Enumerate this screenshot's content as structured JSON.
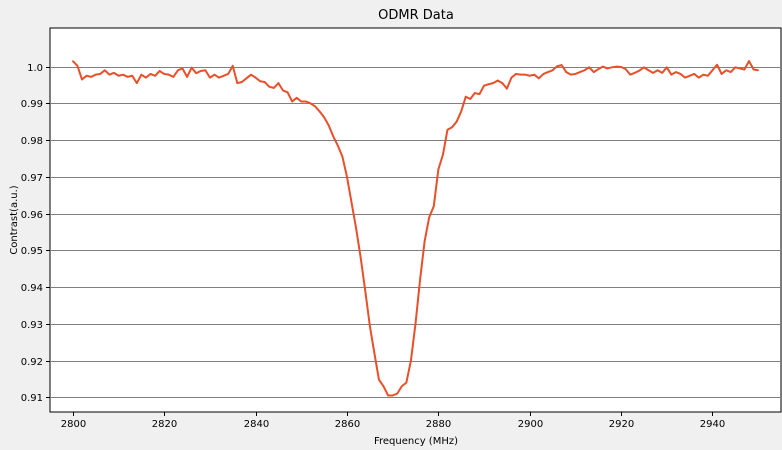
{
  "chart_data": {
    "type": "line",
    "title": "ODMR Data",
    "xlabel": "Frequency (MHz)",
    "ylabel": "Contrast(a.u.)",
    "xlim": [
      2795,
      2955
    ],
    "ylim": [
      0.906,
      1.0105
    ],
    "xticks": [
      2800,
      2820,
      2840,
      2860,
      2880,
      2900,
      2920,
      2940
    ],
    "yticks": [
      0.91,
      0.92,
      0.93,
      0.94,
      0.95,
      0.96,
      0.97,
      0.98,
      0.99,
      1.0
    ],
    "ytick_labels": [
      "0.91",
      "0.92",
      "0.93",
      "0.94",
      "0.95",
      "0.96",
      "0.97",
      "0.98",
      "0.99",
      "1.0"
    ],
    "grid": "horizontal",
    "colors": {
      "line": "#e8502a",
      "background": "#ffffff",
      "grid": "#808080",
      "frame": "#f0f0f0"
    },
    "series": [
      {
        "x": [
          2800,
          2801,
          2802,
          2803,
          2804,
          2805,
          2806,
          2807,
          2808,
          2809,
          2810,
          2811,
          2812,
          2813,
          2814,
          2815,
          2816,
          2817,
          2818,
          2819,
          2820,
          2821,
          2822,
          2823,
          2824,
          2825,
          2826,
          2827,
          2828,
          2829,
          2830,
          2831,
          2832,
          2833,
          2834,
          2835,
          2836,
          2837,
          2838,
          2839,
          2840,
          2841,
          2842,
          2843,
          2844,
          2845,
          2846,
          2847,
          2848,
          2849,
          2850,
          2851,
          2852,
          2853,
          2854,
          2855,
          2856,
          2857,
          2858,
          2859,
          2860,
          2861,
          2862,
          2863,
          2864,
          2865,
          2866,
          2867,
          2868,
          2869,
          2870,
          2871,
          2872,
          2873,
          2874,
          2875,
          2876,
          2877,
          2878,
          2879,
          2880,
          2881,
          2882,
          2883,
          2884,
          2885,
          2886,
          2887,
          2888,
          2889,
          2890,
          2891,
          2892,
          2893,
          2894,
          2895,
          2896,
          2897,
          2898,
          2899,
          2900,
          2901,
          2902,
          2903,
          2904,
          2905,
          2906,
          2907,
          2908,
          2909,
          2910,
          2911,
          2912,
          2913,
          2914,
          2915,
          2916,
          2917,
          2918,
          2919,
          2920,
          2921,
          2922,
          2923,
          2924,
          2925,
          2926,
          2927,
          2928,
          2929,
          2930,
          2931,
          2932,
          2933,
          2934,
          2935,
          2936,
          2937,
          2938,
          2939,
          2940,
          2941,
          2942,
          2943,
          2944,
          2945,
          2946,
          2947,
          2948,
          2949,
          2950
        ],
        "y": [
          1.0015,
          1.0002,
          0.9965,
          0.9975,
          0.9972,
          0.9978,
          0.998,
          0.999,
          0.9978,
          0.9983,
          0.9975,
          0.9978,
          0.9972,
          0.9975,
          0.9955,
          0.9978,
          0.997,
          0.998,
          0.9975,
          0.9988,
          0.998,
          0.9978,
          0.9972,
          0.999,
          0.9995,
          0.9972,
          0.9997,
          0.9982,
          0.9988,
          0.999,
          0.997,
          0.9978,
          0.997,
          0.9975,
          0.998,
          1.0002,
          0.9955,
          0.9958,
          0.9968,
          0.9978,
          0.997,
          0.996,
          0.9958,
          0.9945,
          0.9942,
          0.9955,
          0.9935,
          0.993,
          0.9905,
          0.9915,
          0.9905,
          0.9905,
          0.99,
          0.9892,
          0.9878,
          0.9862,
          0.984,
          0.981,
          0.9785,
          0.9755,
          0.97,
          0.963,
          0.956,
          0.948,
          0.939,
          0.9295,
          0.922,
          0.9148,
          0.913,
          0.9105,
          0.9105,
          0.911,
          0.913,
          0.914,
          0.92,
          0.93,
          0.942,
          0.9525,
          0.959,
          0.962,
          0.972,
          0.976,
          0.9828,
          0.9835,
          0.985,
          0.9878,
          0.9918,
          0.9912,
          0.9928,
          0.9925,
          0.9948,
          0.9952,
          0.9955,
          0.9962,
          0.9955,
          0.994,
          0.997,
          0.998,
          0.9978,
          0.9978,
          0.9975,
          0.9978,
          0.9968,
          0.998,
          0.9985,
          0.999,
          1.0001,
          1.0004,
          0.9985,
          0.9978,
          0.998,
          0.9985,
          0.999,
          0.9998,
          0.9985,
          0.9993,
          1.0,
          0.9995,
          0.9998,
          1.0,
          0.9999,
          0.9993,
          0.9978,
          0.9983,
          0.9989,
          0.9998,
          0.999,
          0.9983,
          0.999,
          0.9983,
          0.9998,
          0.9978,
          0.9985,
          0.998,
          0.997,
          0.9975,
          0.998,
          0.997,
          0.9978,
          0.9975,
          0.999,
          1.0005,
          0.998,
          0.999,
          0.9985,
          0.9998,
          0.9995,
          0.9992,
          1.0015,
          0.9992,
          0.999
        ]
      }
    ]
  }
}
